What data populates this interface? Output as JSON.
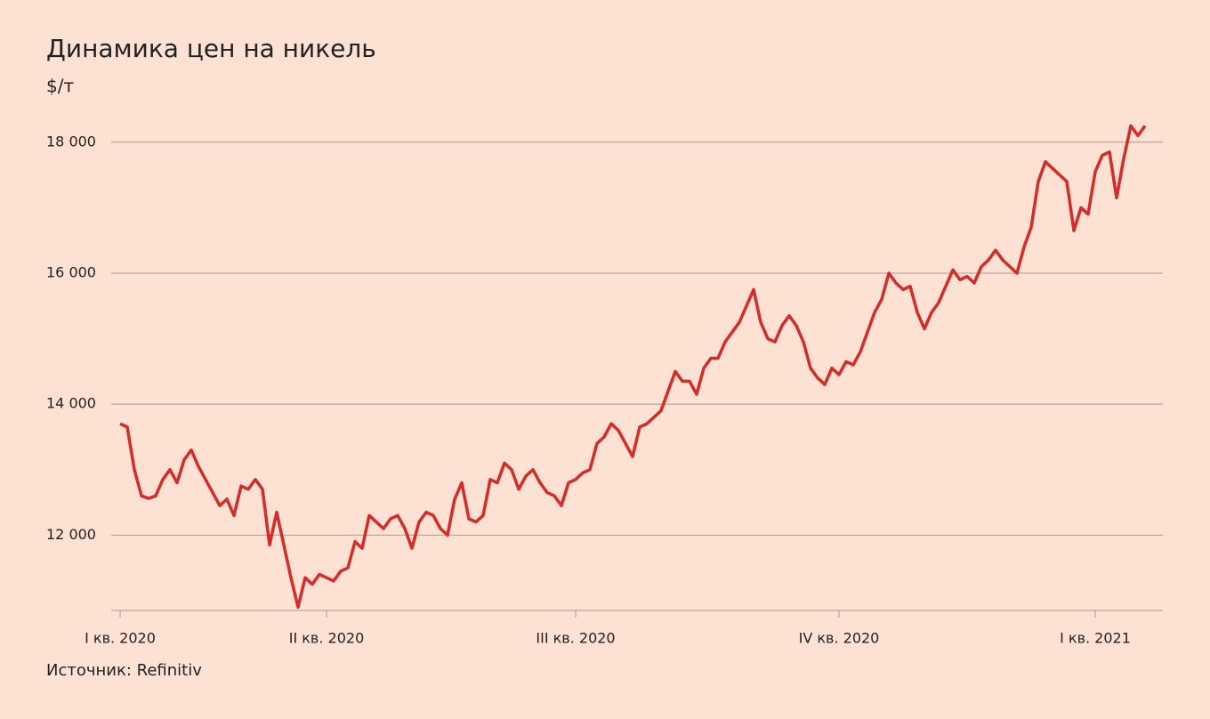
{
  "chart_data": {
    "type": "line",
    "title": "Динамика цен на никель",
    "subtitle": "$/т",
    "source": "Источник: Refinitiv",
    "categories": [
      "I кв. 2020",
      null,
      null,
      null,
      null,
      null,
      null,
      null,
      null,
      null,
      null,
      null,
      null,
      null,
      null,
      null,
      null,
      null,
      null,
      null,
      null,
      null,
      null,
      null,
      null,
      null,
      null,
      null,
      null,
      "II кв. 2020",
      null,
      null,
      null,
      null,
      null,
      null,
      null,
      null,
      null,
      null,
      null,
      null,
      null,
      null,
      null,
      null,
      null,
      null,
      null,
      null,
      null,
      null,
      null,
      null,
      null,
      null,
      null,
      null,
      null,
      null,
      null,
      null,
      null,
      null,
      "III кв. 2020",
      null,
      null,
      null,
      null,
      null,
      null,
      null,
      null,
      null,
      null,
      null,
      null,
      null,
      null,
      null,
      null,
      null,
      null,
      null,
      null,
      null,
      null,
      null,
      null,
      null,
      null,
      null,
      null,
      null,
      null,
      null,
      null,
      null,
      null,
      null,
      null,
      "IV кв. 2020",
      null,
      null,
      null,
      null,
      null,
      null,
      null,
      null,
      null,
      null,
      null,
      null,
      null,
      null,
      null,
      null,
      null,
      null,
      null,
      null,
      null,
      null,
      null,
      null,
      null,
      null,
      null,
      null,
      null,
      null,
      null,
      null,
      null,
      null,
      null,
      "I кв. 2021",
      null,
      null,
      null,
      null,
      null,
      null,
      null
    ],
    "series": [
      {
        "name": "Никель",
        "color": "#d42b2b",
        "values": [
          13700,
          13650,
          13000,
          12600,
          12560,
          12600,
          12850,
          13000,
          12800,
          13150,
          13300,
          13050,
          12850,
          12650,
          12450,
          12550,
          12300,
          12750,
          12700,
          12850,
          12700,
          11850,
          12350,
          11850,
          11350,
          10900,
          11350,
          11250,
          11400,
          11350,
          11300,
          11450,
          11500,
          11900,
          11800,
          12300,
          12200,
          12100,
          12250,
          12300,
          12100,
          11800,
          12200,
          12350,
          12300,
          12100,
          12000,
          12550,
          12800,
          12250,
          12200,
          12300,
          12850,
          12800,
          13100,
          13000,
          12700,
          12900,
          13000,
          12800,
          12650,
          12600,
          12450,
          12800,
          12850,
          12950,
          13000,
          13400,
          13500,
          13700,
          13600,
          13400,
          13200,
          13650,
          13700,
          13800,
          13900,
          14200,
          14500,
          14350,
          14350,
          14150,
          14550,
          14700,
          14700,
          14950,
          15100,
          15250,
          15500,
          15750,
          15250,
          15000,
          14950,
          15200,
          15350,
          15200,
          14950,
          14550,
          14400,
          14300,
          14550,
          14450,
          14650,
          14600,
          14800,
          15100,
          15400,
          15600,
          16000,
          15850,
          15750,
          15800,
          15400,
          15150,
          15400,
          15550,
          15800,
          16050,
          15900,
          15950,
          15850,
          16100,
          16200,
          16350,
          16200,
          16100,
          16000,
          16400,
          16700,
          17400,
          17700,
          17600,
          17500,
          17400,
          16650,
          17000,
          16900,
          17550,
          17800,
          17850,
          17150,
          17750,
          18250,
          18100,
          18250
        ]
      }
    ],
    "ylim": [
      10850,
      18350
    ],
    "yticks": [
      {
        "value": 12000,
        "label": "12 000"
      },
      {
        "value": 14000,
        "label": "14 000"
      },
      {
        "value": 16000,
        "label": "16 000"
      },
      {
        "value": 18000,
        "label": "18 000"
      }
    ],
    "grid": true
  }
}
